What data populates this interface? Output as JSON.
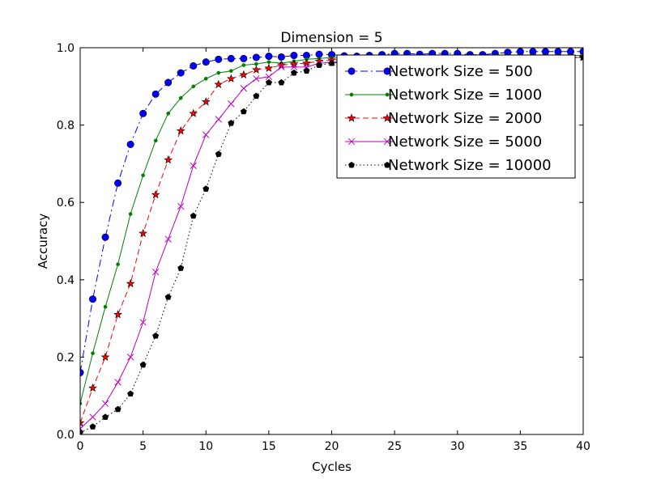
{
  "chart_data": {
    "type": "line",
    "title": "Dimension = 5",
    "xlabel": "Cycles",
    "ylabel": "Accuracy",
    "xlim": [
      0,
      40
    ],
    "ylim": [
      0.0,
      1.0
    ],
    "xticks": [
      "0",
      "5",
      "10",
      "15",
      "20",
      "25",
      "30",
      "35",
      "40"
    ],
    "yticks": [
      "0.0",
      "0.2",
      "0.4",
      "0.6",
      "0.8",
      "1.0"
    ],
    "grid": false,
    "legend_position": "top-right",
    "x": [
      0,
      1,
      2,
      3,
      4,
      5,
      6,
      7,
      8,
      9,
      10,
      11,
      12,
      13,
      14,
      15,
      16,
      17,
      18,
      19,
      20,
      21,
      22,
      23,
      24,
      25,
      26,
      27,
      28,
      29,
      30,
      31,
      32,
      33,
      34,
      35,
      36,
      37,
      38,
      39,
      40
    ],
    "series": [
      {
        "name": "Network Size = 500",
        "color": "#0000ff",
        "dash": "dashdot",
        "marker": "circle",
        "values": [
          0.16,
          0.35,
          0.51,
          0.65,
          0.75,
          0.83,
          0.88,
          0.91,
          0.935,
          0.953,
          0.963,
          0.97,
          0.972,
          0.972,
          0.975,
          0.978,
          0.976,
          0.98,
          0.98,
          0.983,
          0.982,
          0.979,
          0.978,
          0.98,
          0.982,
          0.985,
          0.985,
          0.983,
          0.985,
          0.985,
          0.985,
          0.982,
          0.982,
          0.985,
          0.988,
          0.99,
          0.99,
          0.99,
          0.99,
          0.99,
          0.99
        ]
      },
      {
        "name": "Network Size = 1000",
        "color": "#008000",
        "dash": "solid",
        "marker": "dot",
        "values": [
          0.08,
          0.21,
          0.33,
          0.44,
          0.57,
          0.67,
          0.76,
          0.83,
          0.87,
          0.9,
          0.92,
          0.935,
          0.94,
          0.955,
          0.958,
          0.963,
          0.96,
          0.965,
          0.97,
          0.972,
          0.975,
          0.975,
          0.975,
          0.975,
          0.975,
          0.978,
          0.978,
          0.978,
          0.978,
          0.978,
          0.978,
          0.978,
          0.978,
          0.98,
          0.98,
          0.98,
          0.98,
          0.98,
          0.98,
          0.98,
          0.98
        ]
      },
      {
        "name": "Network Size = 2000",
        "color": "#ff0000",
        "dash": "dashed",
        "marker": "star",
        "values": [
          0.03,
          0.12,
          0.2,
          0.31,
          0.39,
          0.52,
          0.62,
          0.71,
          0.785,
          0.83,
          0.86,
          0.905,
          0.92,
          0.93,
          0.943,
          0.947,
          0.955,
          0.958,
          0.96,
          0.965,
          0.968,
          0.97,
          0.972,
          0.972,
          0.972,
          0.975,
          0.975,
          0.975,
          0.975,
          0.975,
          0.975,
          0.975,
          0.975,
          0.975,
          0.975,
          0.975,
          0.975,
          0.975,
          0.975,
          0.975,
          0.975
        ]
      },
      {
        "name": "Network Size = 5000",
        "color": "#bf00bf",
        "dash": "solid",
        "marker": "x",
        "values": [
          0.015,
          0.045,
          0.08,
          0.135,
          0.2,
          0.29,
          0.42,
          0.505,
          0.59,
          0.695,
          0.775,
          0.815,
          0.855,
          0.895,
          0.92,
          0.925,
          0.95,
          0.95,
          0.95,
          0.96,
          0.962,
          0.965,
          0.965,
          0.968,
          0.97,
          0.97,
          0.97,
          0.97,
          0.972,
          0.972,
          0.972,
          0.972,
          0.972,
          0.975,
          0.975,
          0.975,
          0.975,
          0.975,
          0.975,
          0.975,
          0.975
        ]
      },
      {
        "name": "Network Size = 10000",
        "color": "#000000",
        "dash": "dotted",
        "marker": "pentagon",
        "values": [
          0.005,
          0.02,
          0.045,
          0.065,
          0.105,
          0.18,
          0.255,
          0.355,
          0.43,
          0.565,
          0.635,
          0.725,
          0.805,
          0.835,
          0.875,
          0.91,
          0.91,
          0.935,
          0.94,
          0.955,
          0.96,
          0.965,
          0.965,
          0.965,
          0.965,
          0.968,
          0.968,
          0.968,
          0.97,
          0.97,
          0.97,
          0.97,
          0.97,
          0.97,
          0.972,
          0.972,
          0.972,
          0.972,
          0.972,
          0.975,
          0.975
        ]
      }
    ]
  }
}
